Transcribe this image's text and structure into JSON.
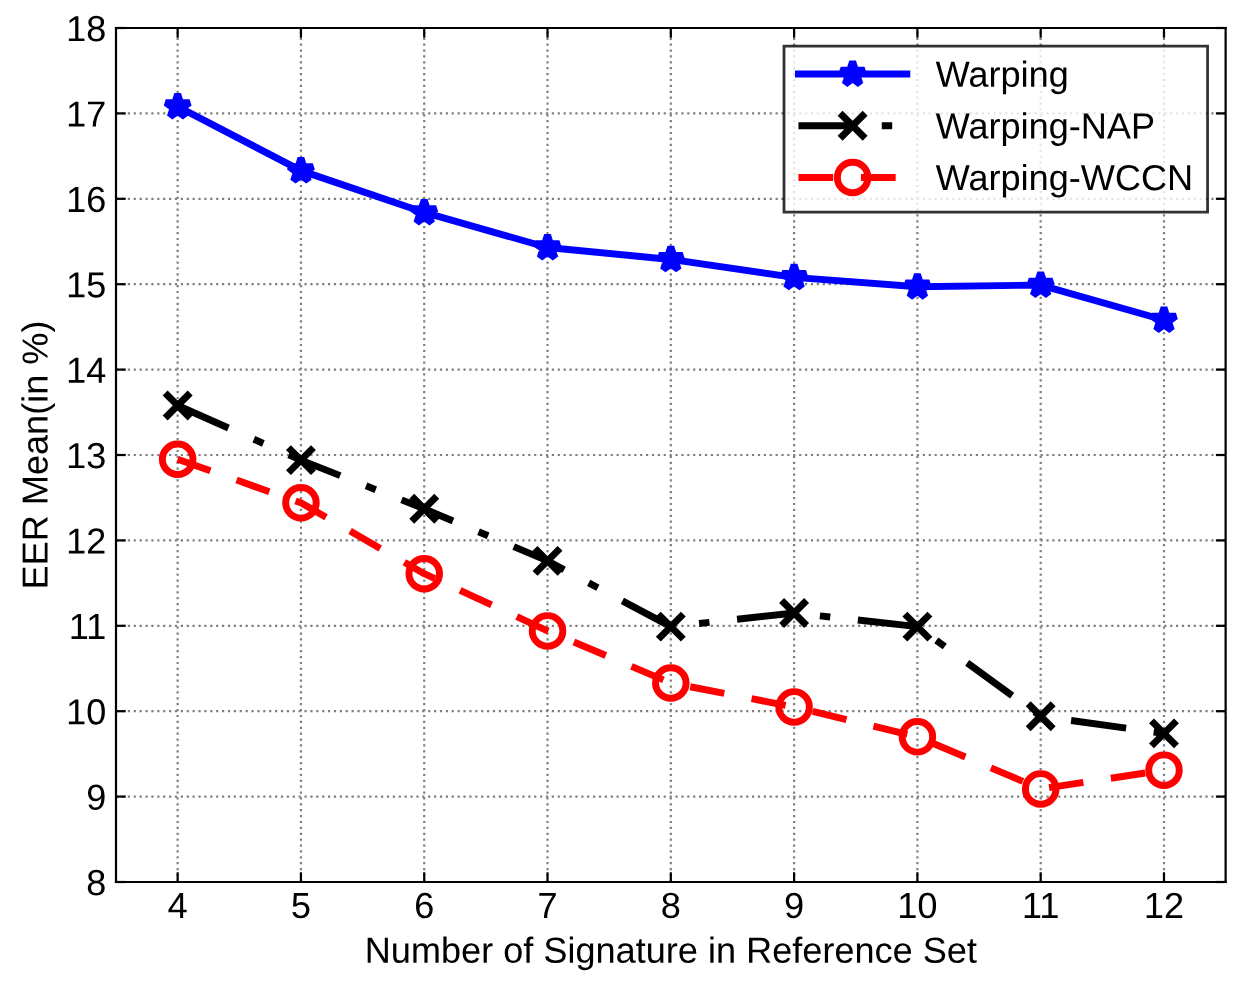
{
  "chart_data": {
    "type": "line",
    "xlabel": "Number of Signature in Reference Set",
    "ylabel": "EER Mean(in %)",
    "x": [
      4,
      5,
      6,
      7,
      8,
      9,
      10,
      11,
      12
    ],
    "series": [
      {
        "name": "Warping",
        "color": "#0000ff",
        "marker": "star",
        "line_style": "solid",
        "values": [
          17.08,
          16.33,
          15.84,
          15.43,
          15.29,
          15.08,
          14.97,
          14.99,
          14.58
        ]
      },
      {
        "name": "Warping-NAP",
        "color": "#000000",
        "marker": "cross",
        "line_style": "dashdot",
        "values": [
          13.58,
          12.94,
          12.37,
          11.76,
          10.99,
          11.15,
          10.99,
          9.94,
          9.74
        ]
      },
      {
        "name": "Warping-WCCN",
        "color": "#ff0000",
        "marker": "circle",
        "line_style": "dashed",
        "values": [
          12.95,
          12.44,
          11.61,
          10.94,
          10.33,
          10.05,
          9.7,
          9.09,
          9.31
        ]
      }
    ],
    "xlim": [
      3.5,
      12.5
    ],
    "xticks": [
      4,
      5,
      6,
      7,
      8,
      9,
      10,
      11,
      12
    ],
    "ylim": [
      8,
      18
    ],
    "yticks": [
      8,
      9,
      10,
      11,
      12,
      13,
      14,
      15,
      16,
      17,
      18
    ],
    "grid": true,
    "legend": "top right"
  }
}
